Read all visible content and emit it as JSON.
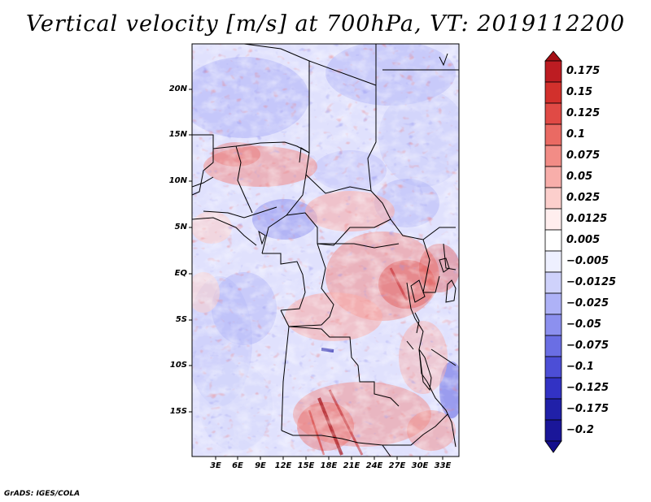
{
  "title": "Vertical velocity [m/s] at 700hPa, VT: 2019112200",
  "credit": "GrADS: IGES/COLA",
  "map": {
    "region": "Central Africa",
    "field": "vertical velocity",
    "units": "m/s",
    "level": "700hPa",
    "valid_time": "2019112200",
    "lat_ticks": [
      "20N",
      "15N",
      "10N",
      "5N",
      "EQ",
      "5S",
      "10S",
      "15S"
    ],
    "lon_ticks": [
      "3E",
      "6E",
      "9E",
      "12E",
      "15E",
      "18E",
      "21E",
      "24E",
      "27E",
      "30E",
      "33E"
    ]
  },
  "colorbar": {
    "levels": [
      "0.175",
      "0.15",
      "0.125",
      "0.1",
      "0.075",
      "0.05",
      "0.025",
      "0.0125",
      "0.005",
      "−0.005",
      "−0.0125",
      "−0.025",
      "−0.05",
      "−0.075",
      "−0.1",
      "−0.125",
      "−0.175",
      "−0.2"
    ],
    "colors": [
      "#a50f15",
      "#bd1c22",
      "#d2302c",
      "#e04a45",
      "#ea6a63",
      "#f28c86",
      "#f8aeaa",
      "#fccfcc",
      "#ffeeee",
      "#ffffff",
      "#eef0ff",
      "#cfd2fb",
      "#aeb2f7",
      "#8c90ef",
      "#6a6ee4",
      "#4c4ed6",
      "#3232c4",
      "#2020a8",
      "#140e8c"
    ]
  }
}
